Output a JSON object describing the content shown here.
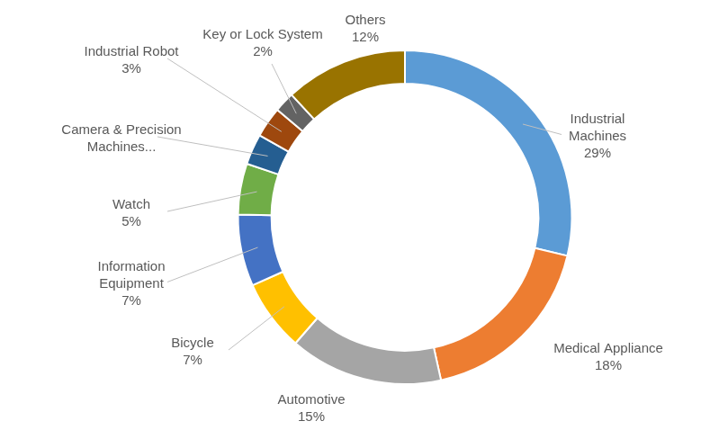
{
  "chart_data": {
    "type": "doughnut",
    "categories": [
      "Industrial Machines",
      "Medical Appliance",
      "Automotive",
      "Bicycle",
      "Information Equipment",
      "Watch",
      "Camera & Precision Machines...",
      "Industrial Robot",
      "Key or Lock System",
      "Others"
    ],
    "values": [
      29,
      18,
      15,
      7,
      7,
      5,
      3,
      3,
      2,
      12
    ],
    "value_labels": [
      "29%",
      "18%",
      "15%",
      "7%",
      "7%",
      "5%",
      null,
      "3%",
      "2%",
      "12%"
    ],
    "colors": [
      "#5b9bd5",
      "#ed7d31",
      "#a5a5a5",
      "#ffc000",
      "#4472c4",
      "#70ad47",
      "#255e91",
      "#9e480e",
      "#636363",
      "#997300"
    ],
    "data_labels": true
  }
}
